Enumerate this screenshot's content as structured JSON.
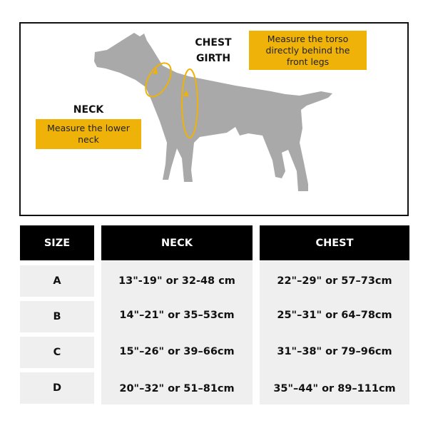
{
  "diagram": {
    "chest_label": "CHEST GIRTH",
    "chest_note": "Measure the torso directly behind the front legs",
    "neck_label": "NECK",
    "neck_note": "Measure the lower neck",
    "accent_color": "#eeb209",
    "dog_color": "#a9a9a9"
  },
  "table": {
    "headers": [
      "SIZE",
      "NECK",
      "CHEST"
    ],
    "rows": [
      {
        "size": "A",
        "neck": "13\"-19\" or  32-48 cm",
        "chest": "22\"–29\" or 57–73cm"
      },
      {
        "size": "B",
        "neck": "14\"–21\" or 35–53cm",
        "chest": "25\"–31\" or 64–78cm"
      },
      {
        "size": "C",
        "neck": "15\"–26\" or 39–66cm",
        "chest": "31\"–38\" or 79–96cm"
      },
      {
        "size": "D",
        "neck": "20\"–32\" or 51–81cm",
        "chest": "35\"–44\" or 89–111cm"
      }
    ]
  }
}
